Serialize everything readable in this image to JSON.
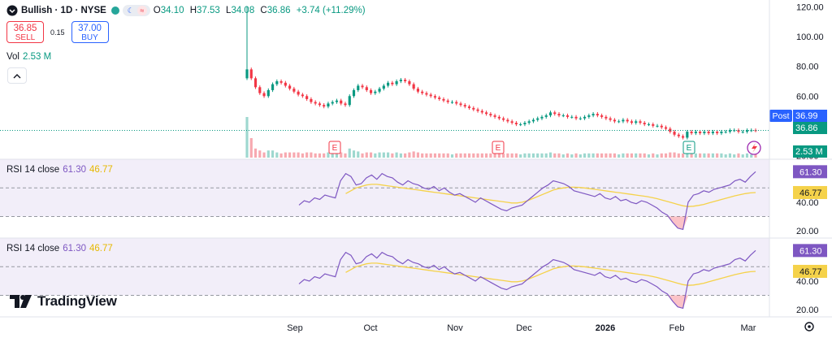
{
  "header": {
    "symbol": "Bullish · 1D · NYSE",
    "open_label": "O",
    "open": "34.10",
    "high_label": "H",
    "high": "37.53",
    "low_label": "L",
    "low": "34.08",
    "close_label": "C",
    "close": "36.86",
    "change": "+3.74 (+11.29%)"
  },
  "trade": {
    "sell_price": "36.85",
    "sell_label": "SELL",
    "spread": "0.15",
    "buy_price": "37.00",
    "buy_label": "BUY"
  },
  "volume": {
    "label": "Vol",
    "value": "2.53 M"
  },
  "rsi_panels": [
    {
      "label": "RSI 14 close",
      "rsi_value": "61.30",
      "ma_value": "46.77"
    },
    {
      "label": "RSI 14 close",
      "rsi_value": "61.30",
      "ma_value": "46.77"
    }
  ],
  "branding": {
    "name": "TradingView"
  },
  "colors": {
    "up": "#089981",
    "down": "#f23645",
    "rsi": "#7e57c2",
    "rsi_ma": "#f5d24a",
    "post_tag": "#2962ff",
    "earnings": "#f23645",
    "earnings_latest": "#089981"
  },
  "chart_data": [
    {
      "type": "candlestick",
      "y_ticks": [
        20,
        40,
        60,
        80,
        100,
        120
      ],
      "ylim": [
        18,
        122
      ],
      "x_ticks": [
        "Sep",
        "Oct",
        "Nov",
        "Dec",
        "2026",
        "Feb",
        "Mar"
      ],
      "price_tags": {
        "post_label": "Post",
        "post_value": "36.99",
        "last_value": "36.86",
        "volume_value": "2.53 M"
      },
      "earnings_markers": [
        "E",
        "E",
        "E"
      ],
      "closes": [
        78,
        72,
        66,
        62,
        60,
        64,
        68,
        70,
        69,
        67,
        65,
        63,
        61,
        60,
        58,
        56,
        55,
        54,
        53,
        55,
        56,
        57,
        55,
        54,
        60,
        64,
        67,
        66,
        64,
        62,
        63,
        65,
        67,
        69,
        68,
        70,
        71,
        70,
        68,
        65,
        63,
        62,
        61,
        60,
        59,
        58,
        57,
        56,
        56,
        55,
        54,
        53,
        52,
        51,
        50,
        49,
        48,
        47,
        46,
        45,
        44,
        43,
        42,
        41,
        41,
        42,
        43,
        44,
        45,
        46,
        47,
        49,
        48,
        47,
        47,
        46,
        46,
        45,
        45,
        46,
        47,
        48,
        47,
        46,
        45,
        44,
        43,
        43,
        44,
        43,
        42,
        43,
        42,
        41,
        41,
        40,
        40,
        39,
        38,
        36,
        34,
        33,
        32,
        36,
        35,
        36,
        35,
        36,
        35,
        36,
        35,
        36,
        36,
        37,
        37,
        36,
        36,
        37,
        37,
        36.86
      ],
      "volume_note": "2.53 M"
    },
    {
      "type": "line",
      "title": "RSI 14 close",
      "ylim": [
        15,
        70
      ],
      "y_ticks": [
        20,
        40
      ],
      "series": [
        {
          "name": "RSI",
          "values": [
            38,
            41,
            40,
            43,
            42,
            45,
            44,
            43,
            55,
            60,
            58,
            52,
            53,
            57,
            59,
            56,
            60,
            58,
            57,
            54,
            52,
            55,
            53,
            52,
            50,
            49,
            51,
            48,
            50,
            47,
            45,
            46,
            44,
            42,
            40,
            43,
            41,
            39,
            37,
            35,
            34,
            36,
            37,
            38,
            41,
            44,
            47,
            50,
            52,
            55,
            54,
            53,
            51,
            48,
            47,
            46,
            45,
            44,
            46,
            43,
            42,
            44,
            41,
            42,
            40,
            39,
            41,
            40,
            38,
            36,
            33,
            31,
            26,
            22,
            21,
            40,
            45,
            46,
            48,
            47,
            49,
            50,
            51,
            52,
            55,
            56,
            54,
            58,
            61.3
          ]
        },
        {
          "name": "RSI-based MA",
          "values": [
            null,
            null,
            null,
            null,
            null,
            null,
            null,
            null,
            null,
            46,
            48,
            50,
            51,
            52,
            52.5,
            52.5,
            52,
            51.5,
            51,
            50.5,
            50,
            49.5,
            49,
            48.5,
            48,
            47.5,
            47,
            46.5,
            46,
            45.5,
            45,
            44.5,
            44,
            43.5,
            43,
            42.5,
            42,
            41.5,
            41,
            40.5,
            40,
            39.5,
            39.5,
            40,
            41,
            42.5,
            44,
            45.5,
            47,
            48.5,
            49.5,
            50,
            50.5,
            50.5,
            50.3,
            50,
            49.5,
            49,
            48.5,
            48,
            47.5,
            47,
            46.5,
            46,
            45.5,
            45,
            44.5,
            44,
            43.3,
            42.5,
            41.5,
            40.5,
            39.5,
            38.5,
            37.5,
            37,
            37.2,
            37.8,
            38.5,
            39.5,
            40.5,
            41.5,
            42.5,
            43.5,
            44.5,
            45.3,
            46,
            46.5,
            46.77
          ]
        }
      ]
    },
    {
      "type": "line",
      "title": "RSI 14 close",
      "ylim": [
        15,
        70
      ],
      "y_ticks": [
        20,
        40
      ],
      "series": [
        {
          "name": "RSI",
          "values": [
            38,
            41,
            40,
            43,
            42,
            45,
            44,
            43,
            55,
            60,
            58,
            52,
            53,
            57,
            59,
            56,
            60,
            58,
            57,
            54,
            52,
            55,
            53,
            52,
            50,
            49,
            51,
            48,
            50,
            47,
            45,
            46,
            44,
            42,
            40,
            43,
            41,
            39,
            37,
            35,
            34,
            36,
            37,
            38,
            41,
            44,
            47,
            50,
            52,
            55,
            54,
            53,
            51,
            48,
            47,
            46,
            45,
            44,
            46,
            43,
            42,
            44,
            41,
            42,
            40,
            39,
            41,
            40,
            38,
            36,
            33,
            31,
            26,
            22,
            21,
            40,
            45,
            46,
            48,
            47,
            49,
            50,
            51,
            52,
            55,
            56,
            54,
            58,
            61.3
          ]
        },
        {
          "name": "RSI-based MA",
          "values": [
            null,
            null,
            null,
            null,
            null,
            null,
            null,
            null,
            null,
            46,
            48,
            50,
            51,
            52,
            52.5,
            52.5,
            52,
            51.5,
            51,
            50.5,
            50,
            49.5,
            49,
            48.5,
            48,
            47.5,
            47,
            46.5,
            46,
            45.5,
            45,
            44.5,
            44,
            43.5,
            43,
            42.5,
            42,
            41.5,
            41,
            40.5,
            40,
            39.5,
            39.5,
            40,
            41,
            42.5,
            44,
            45.5,
            47,
            48.5,
            49.5,
            50,
            50.5,
            50.5,
            50.3,
            50,
            49.5,
            49,
            48.5,
            48,
            47.5,
            47,
            46.5,
            46,
            45.5,
            45,
            44.5,
            44,
            43.3,
            42.5,
            41.5,
            40.5,
            39.5,
            38.5,
            37.5,
            37,
            37.2,
            37.8,
            38.5,
            39.5,
            40.5,
            41.5,
            42.5,
            43.5,
            44.5,
            45.3,
            46,
            46.5,
            46.77
          ]
        }
      ]
    }
  ]
}
